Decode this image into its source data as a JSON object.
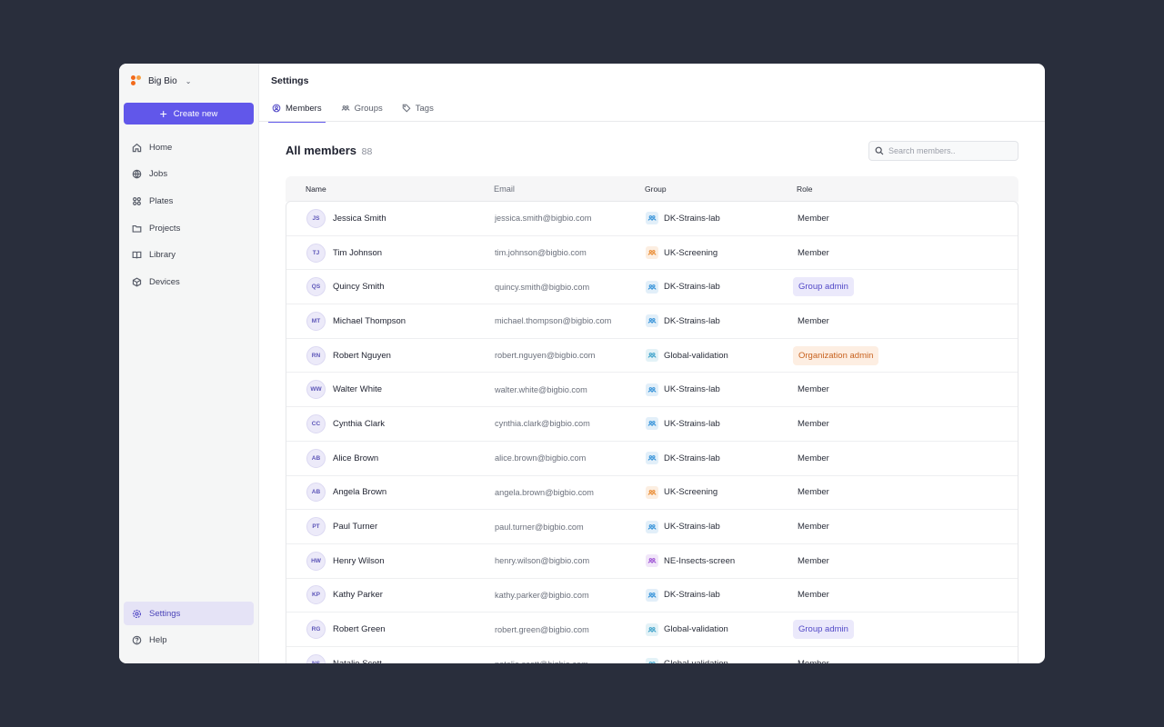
{
  "sidebar": {
    "org_name": "Big Bio",
    "create_label": "Create new",
    "nav": [
      {
        "label": "Home",
        "icon": "home-icon"
      },
      {
        "label": "Jobs",
        "icon": "globe-icon"
      },
      {
        "label": "Plates",
        "icon": "plates-icon"
      },
      {
        "label": "Projects",
        "icon": "folder-icon"
      },
      {
        "label": "Library",
        "icon": "book-icon"
      },
      {
        "label": "Devices",
        "icon": "cube-icon"
      }
    ],
    "bottom": [
      {
        "label": "Settings",
        "icon": "gear-icon",
        "active": true
      },
      {
        "label": "Help",
        "icon": "help-icon"
      }
    ]
  },
  "header": {
    "title": "Settings",
    "tabs": [
      {
        "label": "Members",
        "icon": "user-circle-icon",
        "active": true
      },
      {
        "label": "Groups",
        "icon": "group-icon"
      },
      {
        "label": "Tags",
        "icon": "tag-icon"
      }
    ]
  },
  "members": {
    "title": "All members",
    "count": "88",
    "search_placeholder": "Search members..",
    "columns": {
      "name": "Name",
      "email": "Email",
      "group": "Group",
      "role": "Role"
    },
    "group_colors": {
      "DK-Strains-lab": "#2f8fd8",
      "UK-Screening": "#e8872b",
      "Global-validation": "#3aa0c9",
      "UK-Strains-lab": "#2f8fd8",
      "NE-Insects-screen": "#9b4fd3"
    },
    "rows": [
      {
        "initials": "JS",
        "name": "Jessica Smith",
        "email": "jessica.smith@bigbio.com",
        "group": "DK-Strains-lab",
        "role": "Member"
      },
      {
        "initials": "TJ",
        "name": "Tim Johnson",
        "email": "tim.johnson@bigbio.com",
        "group": "UK-Screening",
        "role": "Member"
      },
      {
        "initials": "QS",
        "name": "Quincy Smith",
        "email": "quincy.smith@bigbio.com",
        "group": "DK-Strains-lab",
        "role": "Group admin"
      },
      {
        "initials": "MT",
        "name": "Michael Thompson",
        "email": "michael.thompson@bigbio.com",
        "group": "DK-Strains-lab",
        "role": "Member"
      },
      {
        "initials": "RN",
        "name": "Robert Nguyen",
        "email": "robert.nguyen@bigbio.com",
        "group": "Global-validation",
        "role": "Organization admin"
      },
      {
        "initials": "WW",
        "name": "Walter White",
        "email": "walter.white@bigbio.com",
        "group": "UK-Strains-lab",
        "role": "Member"
      },
      {
        "initials": "CC",
        "name": "Cynthia Clark",
        "email": "cynthia.clark@bigbio.com",
        "group": "UK-Strains-lab",
        "role": "Member"
      },
      {
        "initials": "AB",
        "name": "Alice Brown",
        "email": "alice.brown@bigbio.com",
        "group": "DK-Strains-lab",
        "role": "Member"
      },
      {
        "initials": "AB",
        "name": "Angela Brown",
        "email": "angela.brown@bigbio.com",
        "group": "UK-Screening",
        "role": "Member"
      },
      {
        "initials": "PT",
        "name": "Paul Turner",
        "email": "paul.turner@bigbio.com",
        "group": "UK-Strains-lab",
        "role": "Member"
      },
      {
        "initials": "HW",
        "name": "Henry Wilson",
        "email": "henry.wilson@bigbio.com",
        "group": "NE-Insects-screen",
        "role": "Member"
      },
      {
        "initials": "KP",
        "name": "Kathy Parker",
        "email": "kathy.parker@bigbio.com",
        "group": "DK-Strains-lab",
        "role": "Member"
      },
      {
        "initials": "RG",
        "name": "Robert Green",
        "email": "robert.green@bigbio.com",
        "group": "Global-validation",
        "role": "Group admin"
      },
      {
        "initials": "NS",
        "name": "Natalie Scott",
        "email": "natalie.scott@bigbio.com",
        "group": "Global-validation",
        "role": "Member"
      }
    ]
  }
}
